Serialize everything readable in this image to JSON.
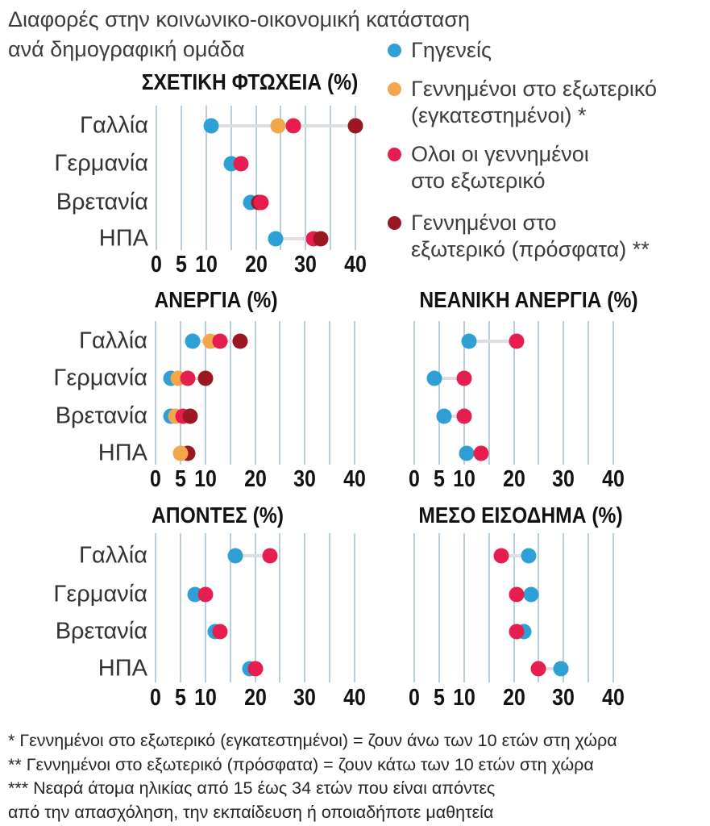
{
  "title": {
    "line1": "Διαφορές στην κοινωνικο-οικονομική κατάσταση",
    "line2": "ανά δημογραφική ομάδα"
  },
  "colors": {
    "native": "#2EA0D6",
    "settled": "#F4A64B",
    "all_foreign": "#E61E4F",
    "recent": "#9B1722",
    "gridline": "#B7CEDB",
    "connector": "#DEDEDE"
  },
  "legend": {
    "items": [
      {
        "key": "native",
        "color": "#2EA0D6",
        "lines": [
          "Γηγενείς"
        ]
      },
      {
        "key": "settled",
        "color": "#F4A64B",
        "lines": [
          "Γεννημένοι στο εξωτερικό",
          "(εγκατεστημένοι) *"
        ]
      },
      {
        "key": "all_foreign",
        "color": "#E61E4F",
        "lines": [
          "Ολοι οι γεννημένοι",
          "στο εξωτερικό"
        ]
      },
      {
        "key": "recent",
        "color": "#9B1722",
        "lines": [
          "Γεννημένοι στο",
          "εξωτερικό (πρόσφατα) **"
        ]
      }
    ]
  },
  "chart_data": [
    {
      "id": "relative-poverty",
      "type": "dot-plot",
      "title": "ΣΧΕΤΙΚΗ ΦΤΩΧΕΙΑ (%)",
      "xlim": [
        0,
        40
      ],
      "x_ticks": [
        0,
        5,
        10,
        20,
        30,
        40
      ],
      "gridline_step": 5,
      "categories": [
        "Γαλλία",
        "Γερμανία",
        "Βρετανία",
        "ΗΠΑ"
      ],
      "rows": [
        {
          "country": "Γαλλία",
          "values": {
            "native": 11,
            "settled": 24.5,
            "all_foreign": 27.5,
            "recent": 40
          },
          "connector": [
            11,
            40
          ]
        },
        {
          "country": "Γερμανία",
          "values": {
            "native": 15,
            "all_foreign": 17
          }
        },
        {
          "country": "Βρετανία",
          "values": {
            "native": 19,
            "recent": 20.5,
            "all_foreign": 21
          },
          "draw_order": [
            "native",
            "recent",
            "all_foreign"
          ]
        },
        {
          "country": "ΗΠΑ",
          "values": {
            "native": 24,
            "all_foreign": 31.5,
            "recent": 33
          },
          "connector": [
            24,
            33
          ]
        }
      ]
    },
    {
      "id": "unemployment",
      "type": "dot-plot",
      "title": "ΑΝΕΡΓΙΑ (%)",
      "xlim": [
        0,
        40
      ],
      "x_ticks": [
        0,
        5,
        10,
        20,
        30,
        40
      ],
      "gridline_step": 5,
      "categories": [
        "Γαλλία",
        "Γερμανία",
        "Βρετανία",
        "ΗΠΑ"
      ],
      "rows": [
        {
          "country": "Γαλλία",
          "values": {
            "native": 7.5,
            "settled": 11,
            "all_foreign": 13,
            "recent": 17
          },
          "connector": [
            7.5,
            17
          ]
        },
        {
          "country": "Γερμανία",
          "values": {
            "native": 3,
            "settled": 4.5,
            "all_foreign": 6.5,
            "recent": 10
          },
          "connector": [
            6.5,
            10
          ]
        },
        {
          "country": "Βρετανία",
          "values": {
            "native": 3,
            "settled": 4,
            "all_foreign": 5.5,
            "recent": 7
          }
        },
        {
          "country": "ΗΠΑ",
          "values": {
            "settled": 5,
            "recent": 6.5
          },
          "draw_order": [
            "recent",
            "settled"
          ]
        }
      ]
    },
    {
      "id": "youth-unemployment",
      "type": "dot-plot",
      "title": "ΝΕΑΝΙΚΗ ΑΝΕΡΓΙΑ (%)",
      "xlim": [
        0,
        40
      ],
      "x_ticks": [
        0,
        5,
        10,
        20,
        30,
        40
      ],
      "gridline_step": 5,
      "categories": [
        "Γαλλία",
        "Γερμανία",
        "Βρετανία",
        "ΗΠΑ"
      ],
      "rows": [
        {
          "country": "Γαλλία",
          "values": {
            "native": 11,
            "all_foreign": 20.5
          },
          "connector": [
            11,
            20.5
          ]
        },
        {
          "country": "Γερμανία",
          "values": {
            "native": 4,
            "all_foreign": 10
          },
          "connector": [
            4,
            10
          ]
        },
        {
          "country": "Βρετανία",
          "values": {
            "native": 6,
            "all_foreign": 10
          },
          "connector": [
            6,
            10
          ]
        },
        {
          "country": "ΗΠΑ",
          "values": {
            "native": 10.5,
            "all_foreign": 13.5
          },
          "connector": [
            10.5,
            13.5
          ]
        }
      ]
    },
    {
      "id": "neet",
      "type": "dot-plot",
      "title": "ΑΠΟΝΤΕΣ (%)",
      "xlim": [
        0,
        40
      ],
      "x_ticks": [
        0,
        5,
        10,
        20,
        30,
        40
      ],
      "gridline_step": 5,
      "categories": [
        "Γαλλία",
        "Γερμανία",
        "Βρετανία",
        "ΗΠΑ"
      ],
      "rows": [
        {
          "country": "Γαλλία",
          "values": {
            "native": 16,
            "all_foreign": 23
          },
          "connector": [
            16,
            23
          ]
        },
        {
          "country": "Γερμανία",
          "values": {
            "native": 8,
            "all_foreign": 10
          }
        },
        {
          "country": "Βρετανία",
          "values": {
            "native": 12,
            "all_foreign": 13
          }
        },
        {
          "country": "ΗΠΑ",
          "values": {
            "native": 19,
            "all_foreign": 20
          }
        }
      ]
    },
    {
      "id": "median-income",
      "type": "dot-plot",
      "title": "ΜΕΣΟ ΕΙΣΟΔΗΜΑ (%)",
      "xlim": [
        0,
        40
      ],
      "x_ticks": [
        0,
        5,
        10,
        20,
        30,
        40
      ],
      "gridline_step": 5,
      "categories": [
        "Γαλλία",
        "Γερμανία",
        "Βρετανία",
        "ΗΠΑ"
      ],
      "rows": [
        {
          "country": "Γαλλία",
          "values": {
            "all_foreign": 17.5,
            "native": 23
          },
          "connector": [
            17.5,
            23
          ]
        },
        {
          "country": "Γερμανία",
          "values": {
            "all_foreign": 20.5,
            "native": 23.5
          }
        },
        {
          "country": "Βρετανία",
          "values": {
            "native": 22,
            "all_foreign": 20.5
          }
        },
        {
          "country": "ΗΠΑ",
          "values": {
            "all_foreign": 25,
            "native": 29.5
          },
          "connector": [
            25,
            29.5
          ]
        }
      ]
    }
  ],
  "footnotes": [
    "* Γεννημένοι στο εξωτερικό (εγκατεστημένοι) = ζουν άνω των 10 ετών στη χώρα",
    "** Γεννημένοι στο εξωτερικό (πρόσφατα) = ζουν κάτω των 10 ετών στη χώρα",
    "*** Νεαρά άτομα ηλικίας από 15 έως 34 ετών που είναι απόντες",
    "από την απασχόληση, την εκπαίδευση ή οποιαδήποτε μαθητεία"
  ]
}
